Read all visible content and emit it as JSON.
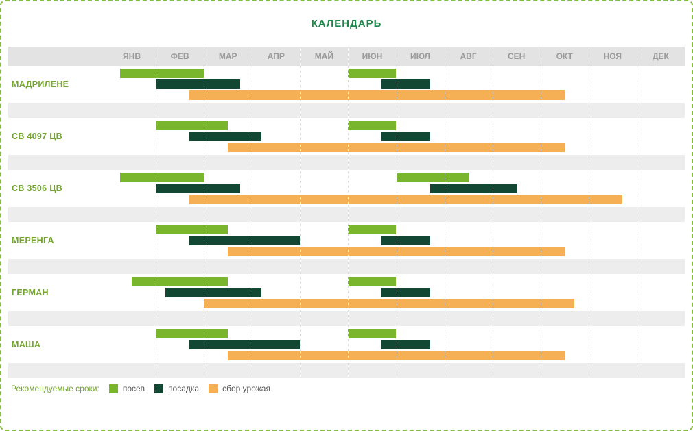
{
  "title": "КАЛЕНДАРЬ",
  "legend": {
    "label": "Рекомендуемые сроки:"
  },
  "colors": {
    "border_green": "#85bb45",
    "title_green": "#1d8649",
    "row_label_green": "#74a52e",
    "header_bg": "#e3e3e3",
    "band_bg": "#ededed",
    "month_text": "#9a9a9a"
  },
  "chart_data": {
    "type": "gantt",
    "title": "КАЛЕНДАРЬ",
    "unit": "months, 0 = start of January, 12 = end of December",
    "months": [
      "ЯНВ",
      "ФЕВ",
      "МАР",
      "АПР",
      "МАЙ",
      "ИЮН",
      "ИЮЛ",
      "АВГ",
      "СЕН",
      "ОКТ",
      "НОЯ",
      "ДЕК"
    ],
    "series_types": [
      {
        "key": "sow",
        "label": "посев",
        "color": "#79b52d"
      },
      {
        "key": "plant",
        "label": "посадка",
        "color": "#124734"
      },
      {
        "key": "harvest",
        "label": "сбор урожая",
        "color": "#f5af54"
      }
    ],
    "rows": [
      {
        "name": "МАДРИЛЕНЕ",
        "sow": [
          {
            "start": 0.25,
            "end": 2.0
          },
          {
            "start": 5.0,
            "end": 6.0
          }
        ],
        "plant": [
          {
            "start": 1.0,
            "end": 2.75
          },
          {
            "start": 5.7,
            "end": 6.7
          }
        ],
        "harvest": [
          {
            "start": 1.7,
            "end": 9.5
          }
        ]
      },
      {
        "name": "СВ 4097 ЦВ",
        "sow": [
          {
            "start": 1.0,
            "end": 2.5
          },
          {
            "start": 5.0,
            "end": 6.0
          }
        ],
        "plant": [
          {
            "start": 1.7,
            "end": 3.2
          },
          {
            "start": 5.7,
            "end": 6.7
          }
        ],
        "harvest": [
          {
            "start": 2.5,
            "end": 9.5
          }
        ]
      },
      {
        "name": "СВ 3506 ЦВ",
        "sow": [
          {
            "start": 0.25,
            "end": 2.0
          },
          {
            "start": 6.0,
            "end": 7.5
          }
        ],
        "plant": [
          {
            "start": 1.0,
            "end": 2.75
          },
          {
            "start": 6.7,
            "end": 8.5
          }
        ],
        "harvest": [
          {
            "start": 1.7,
            "end": 10.7
          }
        ]
      },
      {
        "name": "МЕРЕНГА",
        "sow": [
          {
            "start": 1.0,
            "end": 2.5
          },
          {
            "start": 5.0,
            "end": 6.0
          }
        ],
        "plant": [
          {
            "start": 1.7,
            "end": 4.0
          },
          {
            "start": 5.7,
            "end": 6.7
          }
        ],
        "harvest": [
          {
            "start": 2.5,
            "end": 9.5
          }
        ]
      },
      {
        "name": "ГЕРМАН",
        "sow": [
          {
            "start": 0.5,
            "end": 2.5
          },
          {
            "start": 5.0,
            "end": 6.0
          }
        ],
        "plant": [
          {
            "start": 1.2,
            "end": 3.2
          },
          {
            "start": 5.7,
            "end": 6.7
          }
        ],
        "harvest": [
          {
            "start": 2.0,
            "end": 9.7
          }
        ]
      },
      {
        "name": "МАША",
        "sow": [
          {
            "start": 1.0,
            "end": 2.5
          },
          {
            "start": 5.0,
            "end": 6.0
          }
        ],
        "plant": [
          {
            "start": 1.7,
            "end": 4.0
          },
          {
            "start": 5.7,
            "end": 6.7
          }
        ],
        "harvest": [
          {
            "start": 2.5,
            "end": 9.5
          }
        ]
      }
    ]
  }
}
